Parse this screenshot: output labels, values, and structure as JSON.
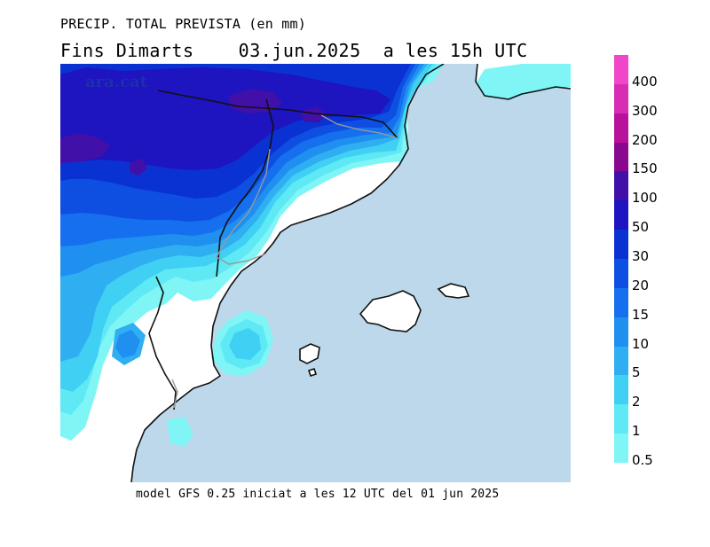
{
  "header": {
    "title_line1": "PRECIP. TOTAL PREVISTA (en mm)",
    "title_line2": "Fins Dimarts    03.jun.2025  a les 15h UTC"
  },
  "watermark": "ara.cat",
  "footer": "model GFS 0.25 iniciat a les 12 UTC del 01 jun 2025",
  "colors": {
    "sea": "#bcd8ea",
    "land_dry": "#ffffff",
    "border_line": "#111111",
    "admin_line": "#999999"
  },
  "colorbar": {
    "unit": "mm",
    "levels": [
      {
        "label": "0.5",
        "color": "#7ff5f6"
      },
      {
        "label": "1",
        "color": "#5fe9f5"
      },
      {
        "label": "2",
        "color": "#40d0f4"
      },
      {
        "label": "5",
        "color": "#30aef2"
      },
      {
        "label": "10",
        "color": "#1f8ff0"
      },
      {
        "label": "15",
        "color": "#166fee"
      },
      {
        "label": "20",
        "color": "#0e4fe2"
      },
      {
        "label": "30",
        "color": "#0a32d2"
      },
      {
        "label": "50",
        "color": "#1e14c0"
      },
      {
        "label": "100",
        "color": "#4010a8"
      },
      {
        "label": "150",
        "color": "#8a0890"
      },
      {
        "label": "200",
        "color": "#b8129c"
      },
      {
        "label": "300",
        "color": "#d82cb4"
      },
      {
        "label": "400",
        "color": "#f246c8"
      }
    ]
  }
}
